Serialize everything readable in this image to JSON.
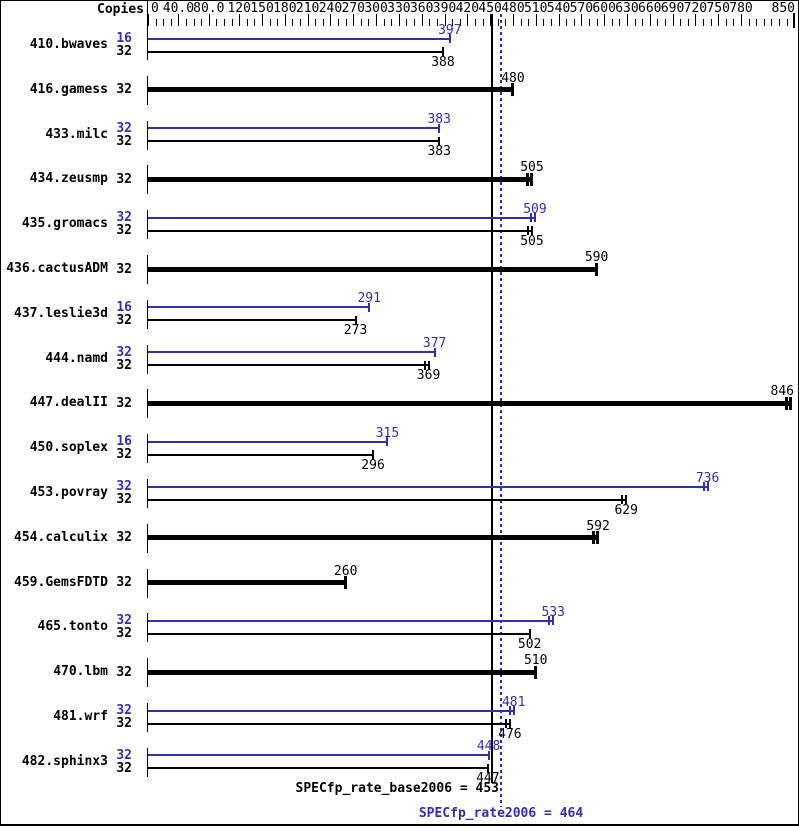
{
  "chart_data": {
    "type": "bar",
    "orientation": "horizontal",
    "copies_label": "Copies",
    "xlim": [
      0,
      851
    ],
    "minor_tick_step": 10,
    "grid": false,
    "axis_labels": [
      {
        "v": 0,
        "text": "0"
      },
      {
        "v": 40,
        "text": "40.0"
      },
      {
        "v": 80,
        "text": "80.0"
      },
      {
        "v": 120,
        "text": "120"
      },
      {
        "v": 150,
        "text": "150"
      },
      {
        "v": 180,
        "text": "180"
      },
      {
        "v": 210,
        "text": "210"
      },
      {
        "v": 240,
        "text": "240"
      },
      {
        "v": 270,
        "text": "270"
      },
      {
        "v": 300,
        "text": "300"
      },
      {
        "v": 330,
        "text": "330"
      },
      {
        "v": 360,
        "text": "360"
      },
      {
        "v": 390,
        "text": "390"
      },
      {
        "v": 420,
        "text": "420"
      },
      {
        "v": 450,
        "text": "450"
      },
      {
        "v": 480,
        "text": "480"
      },
      {
        "v": 510,
        "text": "510"
      },
      {
        "v": 540,
        "text": "540"
      },
      {
        "v": 570,
        "text": "570"
      },
      {
        "v": 600,
        "text": "600"
      },
      {
        "v": 630,
        "text": "630"
      },
      {
        "v": 660,
        "text": "660"
      },
      {
        "v": 690,
        "text": "690"
      },
      {
        "v": 720,
        "text": "720"
      },
      {
        "v": 750,
        "text": "750"
      },
      {
        "v": 780,
        "text": "780"
      },
      {
        "v": 850,
        "text": "850"
      }
    ],
    "benchmarks": [
      {
        "name": "410.bwaves",
        "bars": [
          {
            "series": "peak",
            "copies": "16",
            "value": 397,
            "end_ticks": 1
          },
          {
            "series": "base",
            "copies": "32",
            "value": 388,
            "end_ticks": 1
          }
        ]
      },
      {
        "name": "416.gamess",
        "bars": [
          {
            "series": "base",
            "copies": "32",
            "value": 480,
            "end_ticks": 1
          }
        ]
      },
      {
        "name": "433.milc",
        "bars": [
          {
            "series": "peak",
            "copies": "32",
            "value": 383,
            "end_ticks": 1
          },
          {
            "series": "base",
            "copies": "32",
            "value": 383,
            "end_ticks": 1
          }
        ]
      },
      {
        "name": "434.zeusmp",
        "bars": [
          {
            "series": "base",
            "copies": "32",
            "value": 505,
            "end_ticks": 2
          }
        ]
      },
      {
        "name": "435.gromacs",
        "bars": [
          {
            "series": "peak",
            "copies": "32",
            "value": 509,
            "end_ticks": 2
          },
          {
            "series": "base",
            "copies": "32",
            "value": 505,
            "end_ticks": 2
          }
        ]
      },
      {
        "name": "436.cactusADM",
        "bars": [
          {
            "series": "base",
            "copies": "32",
            "value": 590,
            "end_ticks": 1
          }
        ]
      },
      {
        "name": "437.leslie3d",
        "bars": [
          {
            "series": "peak",
            "copies": "16",
            "value": 291,
            "end_ticks": 1
          },
          {
            "series": "base",
            "copies": "32",
            "value": 273,
            "end_ticks": 1
          }
        ]
      },
      {
        "name": "444.namd",
        "bars": [
          {
            "series": "peak",
            "copies": "32",
            "value": 377,
            "end_ticks": 1
          },
          {
            "series": "base",
            "copies": "32",
            "value": 369,
            "end_ticks": 2
          }
        ]
      },
      {
        "name": "447.dealII",
        "bars": [
          {
            "series": "base",
            "copies": "32",
            "value": 846,
            "end_ticks": 2
          }
        ]
      },
      {
        "name": "450.soplex",
        "bars": [
          {
            "series": "peak",
            "copies": "16",
            "value": 315,
            "end_ticks": 1
          },
          {
            "series": "base",
            "copies": "32",
            "value": 296,
            "end_ticks": 1
          }
        ]
      },
      {
        "name": "453.povray",
        "bars": [
          {
            "series": "peak",
            "copies": "32",
            "value": 736,
            "end_ticks": 2
          },
          {
            "series": "base",
            "copies": "32",
            "value": 629,
            "end_ticks": 2
          }
        ]
      },
      {
        "name": "454.calculix",
        "bars": [
          {
            "series": "base",
            "copies": "32",
            "value": 592,
            "end_ticks": 2
          }
        ]
      },
      {
        "name": "459.GemsFDTD",
        "bars": [
          {
            "series": "base",
            "copies": "32",
            "value": 260,
            "end_ticks": 1
          }
        ]
      },
      {
        "name": "465.tonto",
        "bars": [
          {
            "series": "peak",
            "copies": "32",
            "value": 533,
            "end_ticks": 2
          },
          {
            "series": "base",
            "copies": "32",
            "value": 502,
            "end_ticks": 1
          }
        ]
      },
      {
        "name": "470.lbm",
        "bars": [
          {
            "series": "base",
            "copies": "32",
            "value": 510,
            "end_ticks": 1
          }
        ]
      },
      {
        "name": "481.wrf",
        "bars": [
          {
            "series": "peak",
            "copies": "32",
            "value": 481,
            "end_ticks": 2
          },
          {
            "series": "base",
            "copies": "32",
            "value": 476,
            "end_ticks": 2
          }
        ]
      },
      {
        "name": "482.sphinx3",
        "bars": [
          {
            "series": "peak",
            "copies": "32",
            "value": 448,
            "end_ticks": 1
          },
          {
            "series": "base",
            "copies": "32",
            "value": 447,
            "end_ticks": 1
          }
        ]
      }
    ],
    "reference_lines": [
      {
        "label": "SPECfp_rate_base2006 = 453",
        "value": 453,
        "series": "base",
        "style": "solid"
      },
      {
        "label": "SPECfp_rate2006 = 464",
        "value": 464,
        "series": "peak",
        "style": "dotted"
      }
    ],
    "colors": {
      "base": "#000000",
      "peak": "#2e2eb8"
    }
  }
}
